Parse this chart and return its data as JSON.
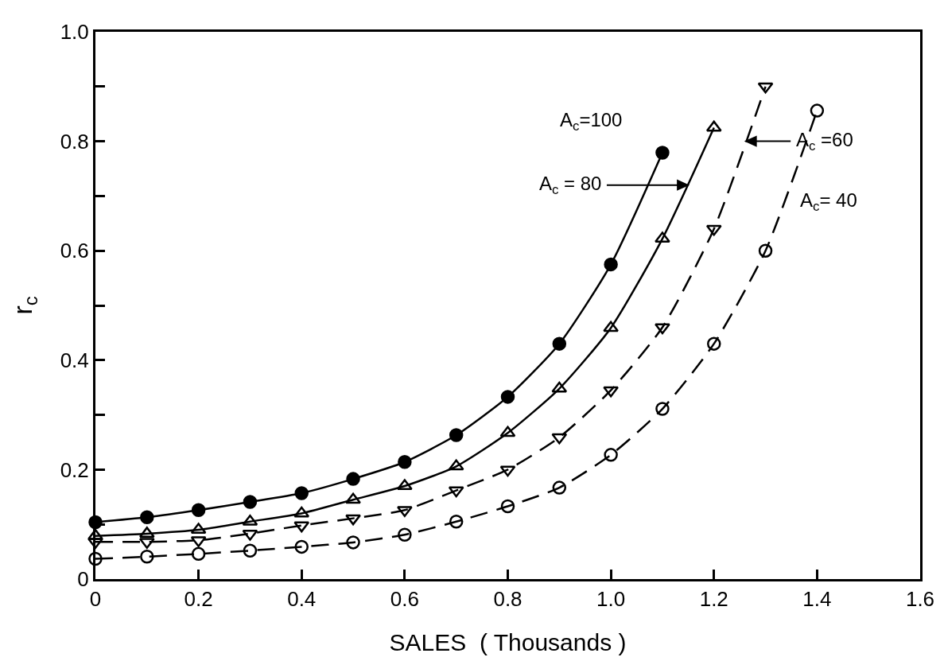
{
  "chart_data": {
    "type": "line",
    "xlabel": "SALES  ( Thousands )",
    "ylabel": "r$_{c}$",
    "x": [
      0,
      0.1,
      0.2,
      0.3,
      0.4,
      0.5,
      0.6,
      0.7,
      0.8,
      0.9,
      1.0,
      1.1,
      1.2,
      1.3,
      1.4
    ],
    "series": [
      {
        "color": "#000000",
        "marker": "circle",
        "line_style": "solid",
        "values": [
          0.104,
          0.113,
          0.126,
          0.141,
          0.157,
          0.183,
          0.214,
          0.263,
          0.333,
          0.43,
          0.575,
          0.779,
          null,
          null,
          null
        ]
      },
      {
        "color": "#000000",
        "marker": "triangle-up-open",
        "line_style": "solid",
        "values": [
          0.079,
          0.083,
          0.09,
          0.105,
          0.12,
          0.145,
          0.17,
          0.206,
          0.267,
          0.348,
          0.459,
          0.622,
          0.825,
          null,
          null
        ]
      },
      {
        "color": "#000000",
        "marker": "triangle-down-open",
        "line_style": "dashed",
        "values": [
          0.068,
          0.068,
          0.071,
          0.083,
          0.098,
          0.111,
          0.126,
          0.162,
          0.2,
          0.259,
          0.345,
          0.46,
          0.64,
          0.9,
          null
        ]
      },
      {
        "color": "#000000",
        "marker": "circle-open",
        "line_style": "dashed",
        "values": [
          0.037,
          0.041,
          0.046,
          0.052,
          0.059,
          0.067,
          0.081,
          0.105,
          0.133,
          0.167,
          0.227,
          0.311,
          0.43,
          0.6,
          0.856
        ]
      }
    ],
    "xlim": [
      0,
      1.6
    ],
    "ylim": [
      0,
      1.0
    ],
    "xticks": [
      0,
      0.2,
      0.4,
      0.6,
      0.8,
      {
        "value": 1.0,
        "label": "1.0"
      },
      1.2,
      1.4,
      1.6
    ],
    "yticks": [
      0,
      {
        "value": 0.1,
        "label": null
      },
      0.2,
      {
        "value": 0.3,
        "label": null
      },
      0.4,
      {
        "value": 0.5,
        "label": null
      },
      0.6,
      {
        "value": 0.7,
        "label": null
      },
      0.8,
      {
        "value": 0.9,
        "label": null
      },
      {
        "value": 1.0,
        "label": "1.0"
      }
    ],
    "annotations": [
      "A$_{c}$=100",
      "A$_{c}$ = 80",
      "A$_{c}$ =60",
      "A$_{c}$= 40"
    ],
    "legend": false
  }
}
